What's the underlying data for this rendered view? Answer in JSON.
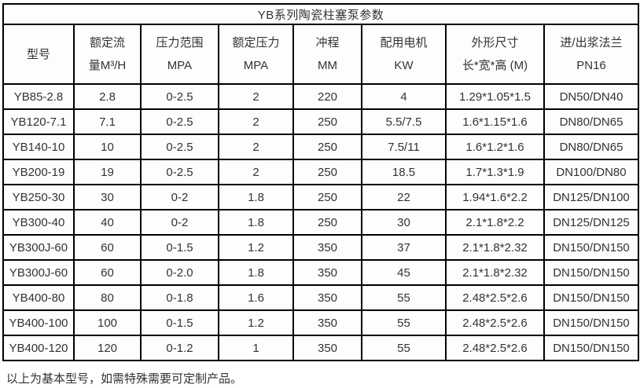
{
  "page": {
    "title": "YB系列陶瓷柱塞泵参数",
    "footer_note": "以上为基本型号，如需特殊需要可定制产品。"
  },
  "table": {
    "headers": [
      "型号",
      "额定流\n量M³/H",
      "压力范围\nMPA",
      "额定压力\nMPA",
      "冲程\nMM",
      "配用电机\nKW",
      "外形尺寸\n长*宽*高 (M)",
      "进/出浆法兰\nPN16"
    ],
    "rows": [
      [
        "YB85-2.8",
        "2.8",
        "0-2.5",
        "2",
        "220",
        "4",
        "1.29*1.05*1.5",
        "DN50/DN40"
      ],
      [
        "YB120-7.1",
        "7.1",
        "0-2.5",
        "2",
        "250",
        "5.5/7.5",
        "1.6*1.15*1.6",
        "DN80/DN65"
      ],
      [
        "YB140-10",
        "10",
        "0-2.5",
        "2",
        "250",
        "7.5/11",
        "1.6*1.2*1.6",
        "DN80/DN65"
      ],
      [
        "YB200-19",
        "19",
        "0-2.5",
        "2",
        "250",
        "18.5",
        "1.7*1.3*1.9",
        "DN100/DN80"
      ],
      [
        "YB250-30",
        "30",
        "0-2",
        "1.8",
        "250",
        "22",
        "1.94*1.6*2.2",
        "DN125/DN100"
      ],
      [
        "YB300-40",
        "40",
        "0-2",
        "1.8",
        "250",
        "30",
        "2.1*1.8*2.2",
        "DN125/DN125"
      ],
      [
        "YB300J-60",
        "60",
        "0-1.5",
        "1.2",
        "350",
        "37",
        "2.1*1.8*2.32",
        "DN150/DN150"
      ],
      [
        "YB300J-60",
        "60",
        "0-2.0",
        "1.8",
        "350",
        "45",
        "2.1*1.8*2.32",
        "DN150/DN150"
      ],
      [
        "YB400-80",
        "80",
        "0-1.8",
        "1.6",
        "350",
        "55",
        "2.48*2.5*2.6",
        "DN150/DN150"
      ],
      [
        "YB400-100",
        "100",
        "0-1.5",
        "1.2",
        "350",
        "55",
        "2.48*2.5*2.6",
        "DN150/DN150"
      ],
      [
        "YB400-120",
        "120",
        "0-1.2",
        "1",
        "350",
        "55",
        "2.48*2.5*2.6",
        "DN150/DN150"
      ]
    ]
  }
}
